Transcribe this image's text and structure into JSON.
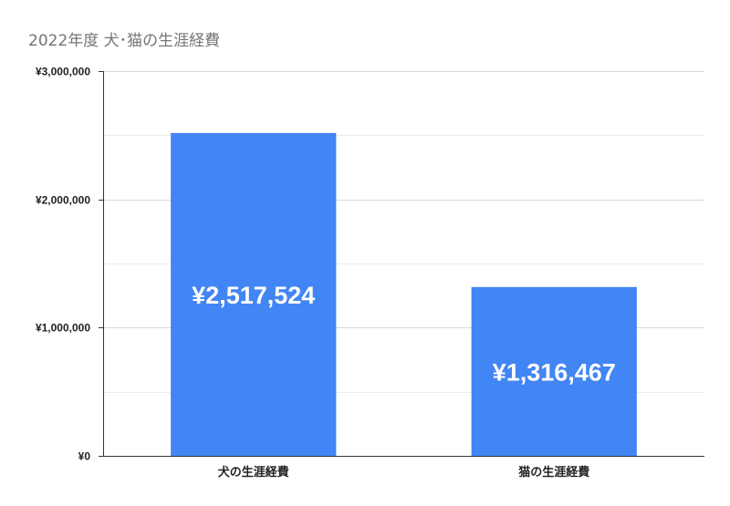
{
  "chart_data": {
    "type": "bar",
    "title": "2022年度 犬･猫の生涯経費",
    "xlabel": "",
    "ylabel": "",
    "categories": [
      "犬の生涯経費",
      "猫の生涯経費"
    ],
    "values": [
      2517524,
      1316467
    ],
    "data_labels": [
      "¥2,517,524",
      "¥1,316,467"
    ],
    "ylim": [
      0,
      3000000
    ],
    "y_ticks": [
      0,
      1000000,
      2000000,
      3000000
    ],
    "y_tick_labels": [
      "¥0",
      "¥1,000,000",
      "¥2,000,000",
      "¥3,000,000"
    ],
    "minor_grid": true,
    "legend": "none",
    "bar_color": "#4285f4",
    "grid_color": "#d9d9d9"
  }
}
